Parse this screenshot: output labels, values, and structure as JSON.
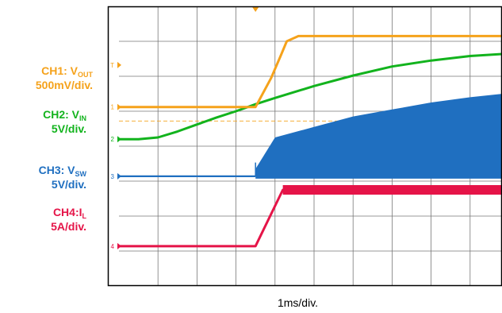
{
  "channel_labels": {
    "ch1": {
      "name": "CH1: V",
      "sub": "OUT",
      "scale": "500mV/div.",
      "color": "#f5a21b"
    },
    "ch2": {
      "name": "CH2: V",
      "sub": "IN",
      "scale": "5V/div.",
      "color": "#12b31d"
    },
    "ch3": {
      "name": "CH3: V",
      "sub": "SW",
      "scale": "5V/div.",
      "color": "#1f6fc0"
    },
    "ch4": {
      "name": "CH4:I",
      "sub": "L",
      "scale": "5A/div.",
      "color": "#e51448"
    }
  },
  "chart_data": {
    "type": "line",
    "xlabel": "1ms/div.",
    "x_unit": "div",
    "xlim": [
      0,
      10
    ],
    "ylim": [
      0,
      8
    ],
    "grid": true,
    "grid_divisions": {
      "x": 10,
      "y": 8
    },
    "markers": {
      "trigger_x": 3.5,
      "ref_line_ch1_y": 4.72
    },
    "channel_ground_markers": [
      {
        "label": "1",
        "y": 5.12,
        "color": "#f5a21b"
      },
      {
        "label": "2",
        "y": 4.2,
        "color": "#12b31d"
      },
      {
        "label": "3",
        "y": 3.14,
        "color": "#1f6fc0"
      },
      {
        "label": "4",
        "y": 1.14,
        "color": "#e51448"
      },
      {
        "label": "T",
        "y": 6.32,
        "color": "#f5a21b"
      }
    ],
    "series": [
      {
        "name": "CH1: VOUT",
        "color": "#f5a21b",
        "x": [
          0,
          3.5,
          3.9,
          4.15,
          4.3,
          4.6,
          10
        ],
        "y": [
          5.12,
          5.12,
          5.95,
          6.6,
          7.0,
          7.15,
          7.15
        ]
      },
      {
        "name": "CH2: VIN",
        "color": "#12b31d",
        "x": [
          0,
          0.5,
          1.0,
          1.5,
          2.0,
          2.5,
          3.0,
          3.5,
          4.0,
          5.0,
          6.0,
          7.0,
          8.0,
          9.0,
          10.0
        ],
        "y": [
          4.2,
          4.2,
          4.25,
          4.42,
          4.62,
          4.82,
          5.0,
          5.2,
          5.38,
          5.72,
          6.02,
          6.28,
          6.45,
          6.58,
          6.65
        ]
      },
      {
        "name": "CH3: VSW",
        "color": "#1f6fc0",
        "baseline_y": 3.14,
        "x": [
          3.5,
          4.0,
          5.0,
          6.0,
          7.0,
          8.0,
          9.0,
          10.0
        ],
        "envelope_top": [
          3.35,
          4.25,
          4.55,
          4.85,
          5.05,
          5.25,
          5.4,
          5.52
        ]
      },
      {
        "name": "CH4: IL",
        "color": "#e51448",
        "x": [
          0,
          3.5,
          4.2,
          10
        ],
        "y": [
          1.14,
          1.14,
          2.75,
          2.75
        ]
      }
    ]
  }
}
